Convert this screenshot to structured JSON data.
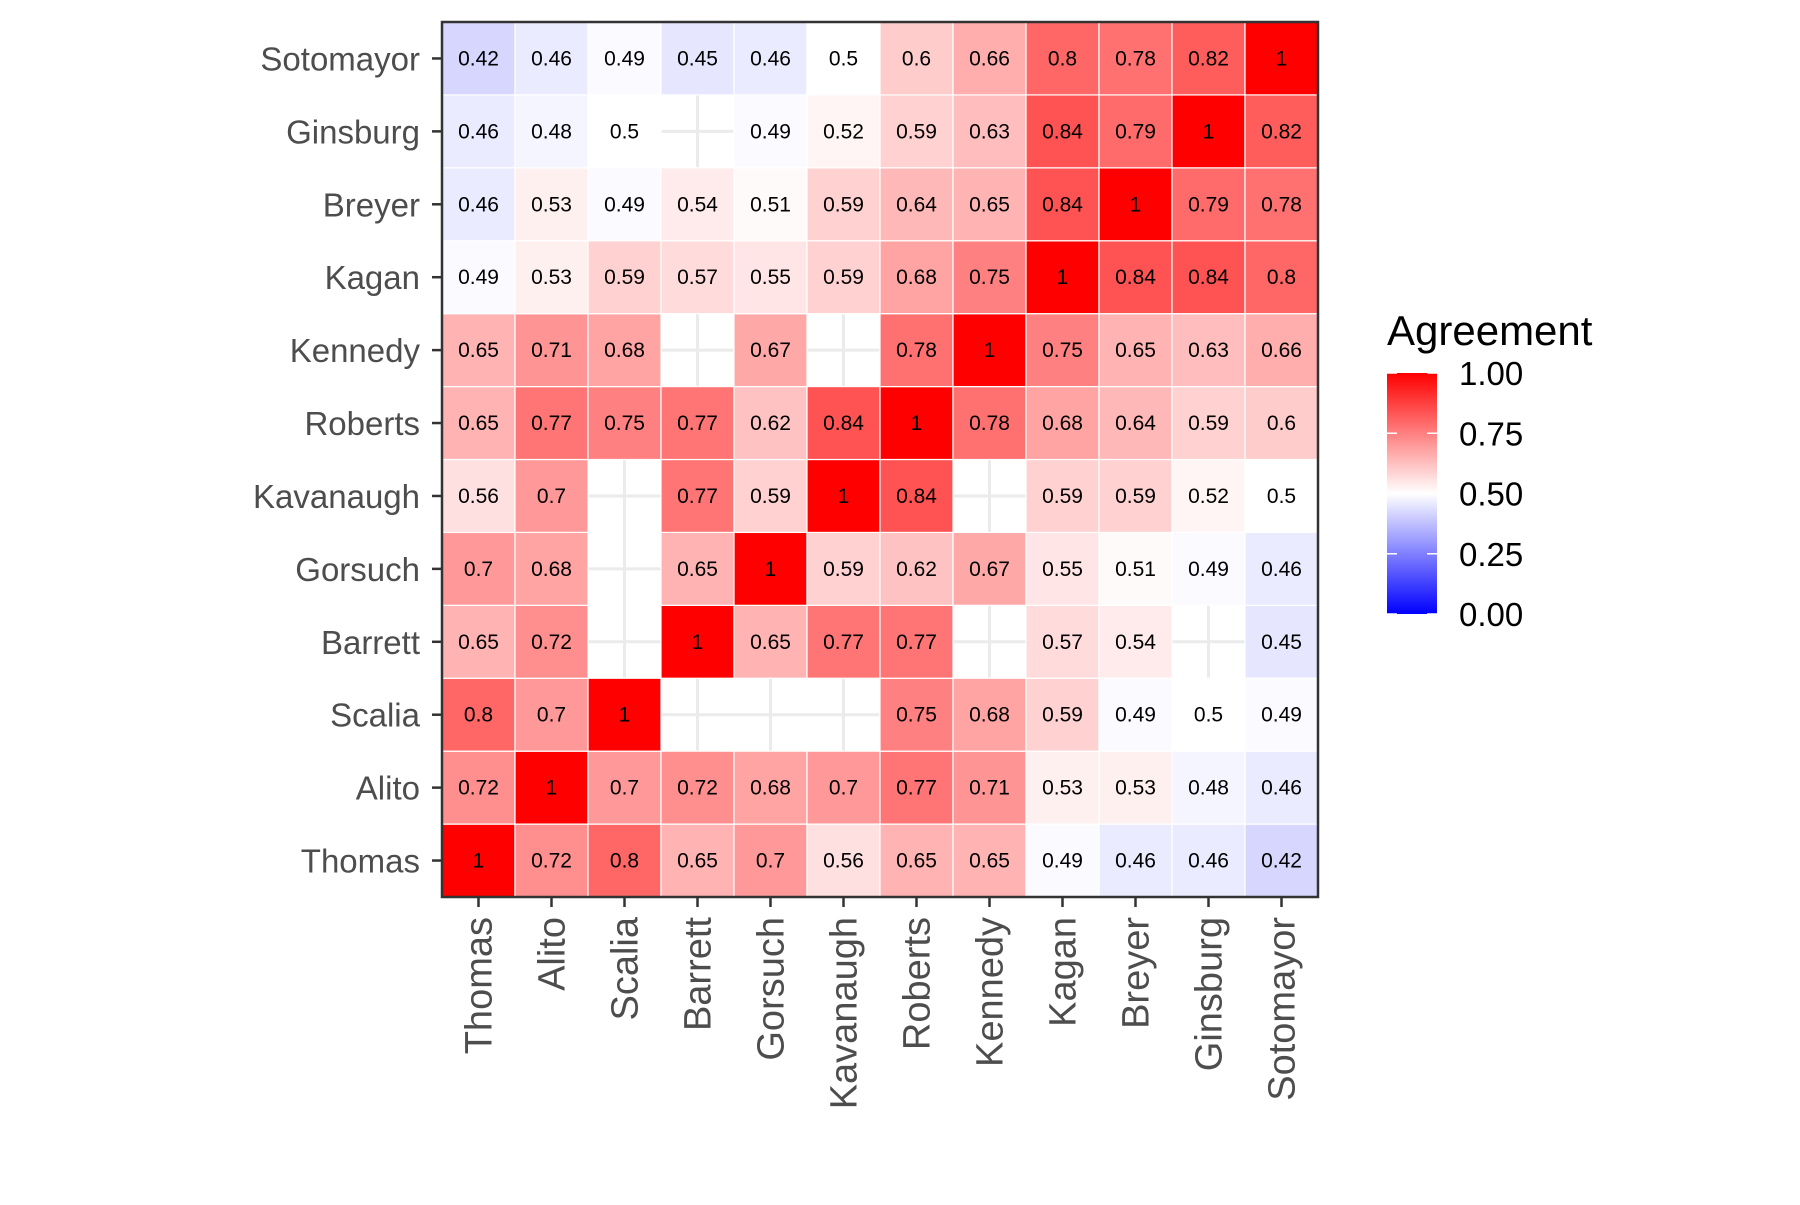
{
  "chart_data": {
    "type": "heatmap",
    "x_categories": [
      "Thomas",
      "Alito",
      "Scalia",
      "Barrett",
      "Gorsuch",
      "Kavanaugh",
      "Roberts",
      "Kennedy",
      "Kagan",
      "Breyer",
      "Ginsburg",
      "Sotomayor"
    ],
    "y_categories": [
      "Thomas",
      "Alito",
      "Scalia",
      "Barrett",
      "Gorsuch",
      "Kavanaugh",
      "Roberts",
      "Kennedy",
      "Kagan",
      "Breyer",
      "Ginsburg",
      "Sotomayor"
    ],
    "values": [
      [
        1,
        0.72,
        0.8,
        0.65,
        0.7,
        0.56,
        0.65,
        0.65,
        0.49,
        0.46,
        0.46,
        0.42
      ],
      [
        0.72,
        1,
        0.7,
        0.72,
        0.68,
        0.7,
        0.77,
        0.71,
        0.53,
        0.53,
        0.48,
        0.46
      ],
      [
        0.8,
        0.7,
        1,
        null,
        null,
        null,
        0.75,
        0.68,
        0.59,
        0.49,
        0.5,
        0.49
      ],
      [
        0.65,
        0.72,
        null,
        1,
        0.65,
        0.77,
        0.77,
        null,
        0.57,
        0.54,
        null,
        0.45
      ],
      [
        0.7,
        0.68,
        null,
        0.65,
        1,
        0.59,
        0.62,
        0.67,
        0.55,
        0.51,
        0.49,
        0.46
      ],
      [
        0.56,
        0.7,
        null,
        0.77,
        0.59,
        1,
        0.84,
        null,
        0.59,
        0.59,
        0.52,
        0.5
      ],
      [
        0.65,
        0.77,
        0.75,
        0.77,
        0.62,
        0.84,
        1,
        0.78,
        0.68,
        0.64,
        0.59,
        0.6
      ],
      [
        0.65,
        0.71,
        0.68,
        null,
        0.67,
        null,
        0.78,
        1,
        0.75,
        0.65,
        0.63,
        0.66
      ],
      [
        0.49,
        0.53,
        0.59,
        0.57,
        0.55,
        0.59,
        0.68,
        0.75,
        1,
        0.84,
        0.84,
        0.8
      ],
      [
        0.46,
        0.53,
        0.49,
        0.54,
        0.51,
        0.59,
        0.64,
        0.65,
        0.84,
        1,
        0.79,
        0.78
      ],
      [
        0.46,
        0.48,
        0.5,
        null,
        0.49,
        0.52,
        0.59,
        0.63,
        0.84,
        0.79,
        1,
        0.82
      ],
      [
        0.42,
        0.46,
        0.49,
        0.45,
        0.46,
        0.5,
        0.6,
        0.66,
        0.8,
        0.78,
        0.82,
        1
      ]
    ],
    "legend": {
      "title": "Agreement",
      "ticks": [
        "0.00",
        "0.25",
        "0.50",
        "0.75",
        "1.00"
      ],
      "low_color": "#0000ff",
      "mid_color": "#ffffff",
      "high_color": "#ff0000",
      "midpoint": 0.5,
      "placement": "right"
    },
    "grid": true
  }
}
